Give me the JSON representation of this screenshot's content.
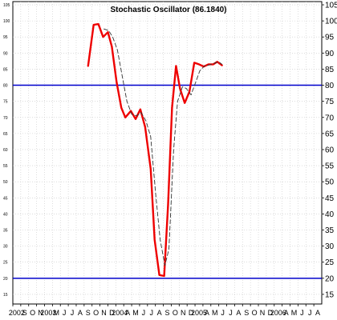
{
  "chart_data": {
    "type": "line",
    "title": "Stochastic Oscillator (86.1840)",
    "x_labels": [
      "2002",
      "S",
      "O",
      "N",
      "2003",
      "M",
      "J",
      "J",
      "A",
      "S",
      "O",
      "N",
      "D",
      "2004",
      "A",
      "M",
      "J",
      "J",
      "A",
      "S",
      "O",
      "N",
      "D",
      "2005",
      "A",
      "M",
      "J",
      "J",
      "A",
      "S",
      "O",
      "N",
      "D",
      "2006",
      "A",
      "M",
      "J",
      "J",
      "A"
    ],
    "ylim": [
      12,
      106
    ],
    "y_ticks": [
      15,
      20,
      25,
      30,
      35,
      40,
      45,
      50,
      55,
      60,
      65,
      70,
      75,
      80,
      85,
      90,
      95,
      100,
      105
    ],
    "reference_lines": [
      80,
      20
    ],
    "series": [
      {
        "color": "#ee0000",
        "style": "solid",
        "points": [
          [
            9.5,
            86
          ],
          [
            10.2,
            98.8
          ],
          [
            10.8,
            99
          ],
          [
            11.4,
            95
          ],
          [
            12,
            96.5
          ],
          [
            12.5,
            92
          ],
          [
            13.1,
            81
          ],
          [
            13.7,
            73
          ],
          [
            14.2,
            70
          ],
          [
            14.9,
            72
          ],
          [
            15.5,
            69.5
          ],
          [
            16.1,
            72.5
          ],
          [
            16.7,
            67
          ],
          [
            17.4,
            54
          ],
          [
            17.9,
            32
          ],
          [
            18.5,
            21
          ],
          [
            19.1,
            20.7
          ],
          [
            19.6,
            43
          ],
          [
            20.1,
            73
          ],
          [
            20.6,
            86
          ],
          [
            21.1,
            79
          ],
          [
            21.7,
            74.5
          ],
          [
            22.3,
            78
          ],
          [
            22.9,
            87
          ],
          [
            23.5,
            86.5
          ],
          [
            24.1,
            85.8
          ],
          [
            24.7,
            86.5
          ],
          [
            25.3,
            86.5
          ],
          [
            25.8,
            87.3
          ],
          [
            26.4,
            86.2
          ]
        ]
      },
      {
        "color": "#333333",
        "style": "dashed",
        "points": [
          [
            11.5,
            97.5
          ],
          [
            12.1,
            97
          ],
          [
            12.6,
            95
          ],
          [
            13.2,
            91
          ],
          [
            13.8,
            83
          ],
          [
            14.4,
            75
          ],
          [
            15,
            71
          ],
          [
            15.6,
            70.5
          ],
          [
            16.2,
            71.5
          ],
          [
            16.8,
            69
          ],
          [
            17.4,
            64
          ],
          [
            18,
            47
          ],
          [
            18.6,
            32
          ],
          [
            19.2,
            24
          ],
          [
            19.7,
            29
          ],
          [
            20.3,
            60
          ],
          [
            20.8,
            75
          ],
          [
            21.4,
            79.5
          ],
          [
            21.9,
            79
          ],
          [
            22.5,
            77
          ],
          [
            23.1,
            81
          ],
          [
            23.6,
            84.5
          ],
          [
            24.2,
            86
          ],
          [
            24.8,
            86.3
          ],
          [
            25.4,
            86.8
          ],
          [
            26,
            87.3
          ],
          [
            26.4,
            86.5
          ]
        ]
      }
    ]
  }
}
